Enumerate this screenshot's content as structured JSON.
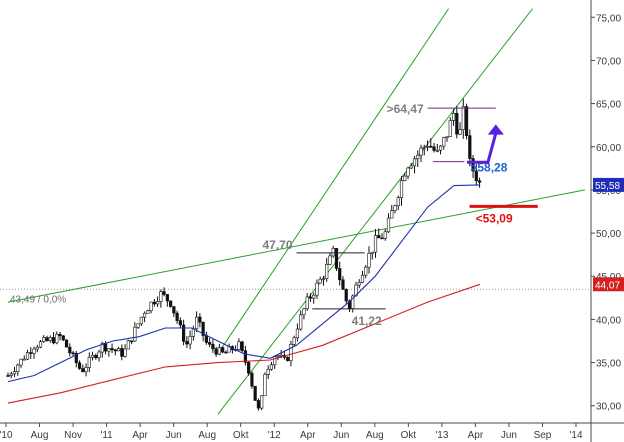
{
  "chart_data": {
    "type": "candlestick",
    "ylim": [
      28,
      77
    ],
    "y_ticks": [
      30,
      35,
      40,
      45,
      50,
      55,
      60,
      65,
      70,
      75
    ],
    "y_tick_labels": [
      "30,00",
      "35,00",
      "40,00",
      "45,00",
      "50,00",
      "55,00",
      "60,00",
      "65,00",
      "70,00",
      "75,00"
    ],
    "x_labels": [
      "'10",
      "Aug",
      "Nov",
      "'11",
      "Apr",
      "Jun",
      "Aug",
      "Okt",
      "'12",
      "Apr",
      "Jun",
      "Aug",
      "Okt",
      "'13",
      "Apr",
      "Jun",
      "Sep",
      "'14"
    ],
    "price_path": [
      [
        0,
        33.5
      ],
      [
        5,
        37
      ],
      [
        10,
        38
      ],
      [
        14,
        34
      ],
      [
        18,
        37
      ],
      [
        22,
        36
      ],
      [
        26,
        41
      ],
      [
        29,
        43
      ],
      [
        31,
        42
      ],
      [
        34,
        37
      ],
      [
        36,
        40
      ],
      [
        38,
        37
      ],
      [
        41,
        36
      ],
      [
        44,
        37
      ],
      [
        46,
        34
      ],
      [
        47,
        31
      ],
      [
        48,
        29
      ],
      [
        49,
        34
      ],
      [
        51,
        36
      ],
      [
        53,
        35
      ],
      [
        55,
        39
      ],
      [
        57,
        42
      ],
      [
        60,
        45
      ],
      [
        62,
        47.7
      ],
      [
        64,
        43
      ],
      [
        65,
        41.3
      ],
      [
        67,
        45
      ],
      [
        70,
        49
      ],
      [
        72,
        50
      ],
      [
        74,
        54
      ],
      [
        76,
        58
      ],
      [
        78,
        59
      ],
      [
        80,
        60.5
      ],
      [
        82,
        59
      ],
      [
        84,
        62
      ],
      [
        85,
        64
      ],
      [
        86,
        61
      ],
      [
        87,
        64.5
      ],
      [
        88,
        58
      ],
      [
        89,
        57
      ],
      [
        90,
        55.6
      ]
    ],
    "series": [
      {
        "name": "",
        "color": "#1f2fb5",
        "values": [
          [
            0,
            32.8
          ],
          [
            5,
            33.5
          ],
          [
            10,
            35
          ],
          [
            15,
            36.5
          ],
          [
            20,
            37.5
          ],
          [
            25,
            38
          ],
          [
            30,
            39
          ],
          [
            35,
            39
          ],
          [
            40,
            37.5
          ],
          [
            45,
            36
          ],
          [
            50,
            35.5
          ],
          [
            55,
            37
          ],
          [
            60,
            39.5
          ],
          [
            65,
            42
          ],
          [
            70,
            45
          ],
          [
            75,
            49
          ],
          [
            80,
            53
          ],
          [
            85,
            55.5
          ],
          [
            90,
            55.58
          ]
        ]
      },
      {
        "name": "",
        "color": "#d42020",
        "values": [
          [
            0,
            30.3
          ],
          [
            10,
            31.5
          ],
          [
            20,
            33
          ],
          [
            30,
            34.5
          ],
          [
            40,
            35
          ],
          [
            50,
            35.3
          ],
          [
            60,
            37
          ],
          [
            70,
            39.5
          ],
          [
            80,
            42
          ],
          [
            90,
            44.07
          ]
        ]
      }
    ],
    "trend_lines": [
      {
        "color": "#2ca02c",
        "from": [
          0,
          42
        ],
        "to": [
          110,
          55
        ]
      },
      {
        "color": "#2ca02c",
        "from": [
          40,
          36
        ],
        "to": [
          84,
          76
        ]
      },
      {
        "color": "#2ca02c",
        "from": [
          40,
          29
        ],
        "to": [
          100,
          76
        ]
      }
    ],
    "ref_line": {
      "value": 43.49,
      "label": "43,49 / 0,0%"
    },
    "levels": [
      {
        "label": "47,70",
        "value": 47.7,
        "color": "#7f7f7f",
        "from": 55,
        "to": 68
      },
      {
        "label": "41,22",
        "value": 41.22,
        "color": "#7f7f7f",
        "from": 58,
        "to": 72
      },
      {
        "label": ">64,47",
        "value": 64.47,
        "color": "#7f7f7f",
        "line_color": "#6d2f7a",
        "from": 80,
        "to": 93
      },
      {
        "label": ">58,28",
        "value": 58.28,
        "color": "#1f5fd6",
        "line_color": "#6d2f7a",
        "from": 81,
        "to": 87
      },
      {
        "label": "<53,09",
        "value": 53.09,
        "color": "#e01010",
        "line_color": "#e01010",
        "from": 88,
        "to": 101
      }
    ],
    "arrow": {
      "color": "#5522dd",
      "from": [
        87.5,
        58.2
      ],
      "corner": [
        91.5,
        58.2
      ],
      "to": [
        93,
        62.5
      ]
    },
    "price_boxes": [
      {
        "label": "55,58",
        "value": 55.58,
        "color": "#1f2fb5"
      },
      {
        "label": "44,07",
        "value": 44.07,
        "color": "#d42020"
      }
    ]
  }
}
